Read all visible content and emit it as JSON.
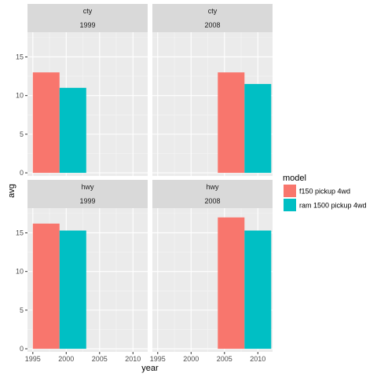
{
  "chart_data": {
    "type": "bar",
    "title": "",
    "xlabel": "year",
    "ylabel": "avg",
    "xlim": [
      1994.2,
      2012.2
    ],
    "ylim": [
      -0.4,
      18.2
    ],
    "x_ticks": [
      1995,
      2000,
      2005,
      2010
    ],
    "y_ticks": [
      0,
      5,
      10,
      15
    ],
    "bar_width": 4,
    "facet_rows": [
      "cty",
      "hwy"
    ],
    "facet_cols": [
      "1999",
      "2008"
    ],
    "legend": {
      "title": "model",
      "position": "right",
      "entries": [
        {
          "label": "f150 pickup 4wd",
          "color": "#F8766D"
        },
        {
          "label": "ram 1500 pickup 4wd",
          "color": "#00BFC4"
        }
      ]
    },
    "panels": [
      {
        "row": "cty",
        "col": "1999",
        "bars": [
          {
            "model": "f150 pickup 4wd",
            "x": 1997,
            "value": 13.0
          },
          {
            "model": "ram 1500 pickup 4wd",
            "x": 2001,
            "value": 11.0
          }
        ]
      },
      {
        "row": "cty",
        "col": "2008",
        "bars": [
          {
            "model": "f150 pickup 4wd",
            "x": 2006,
            "value": 13.0
          },
          {
            "model": "ram 1500 pickup 4wd",
            "x": 2010,
            "value": 11.5
          }
        ]
      },
      {
        "row": "hwy",
        "col": "1999",
        "bars": [
          {
            "model": "f150 pickup 4wd",
            "x": 1997,
            "value": 16.2
          },
          {
            "model": "ram 1500 pickup 4wd",
            "x": 2001,
            "value": 15.3
          }
        ]
      },
      {
        "row": "hwy",
        "col": "2008",
        "bars": [
          {
            "model": "f150 pickup 4wd",
            "x": 2006,
            "value": 17.0
          },
          {
            "model": "ram 1500 pickup 4wd",
            "x": 2010,
            "value": 15.3
          }
        ]
      }
    ]
  }
}
